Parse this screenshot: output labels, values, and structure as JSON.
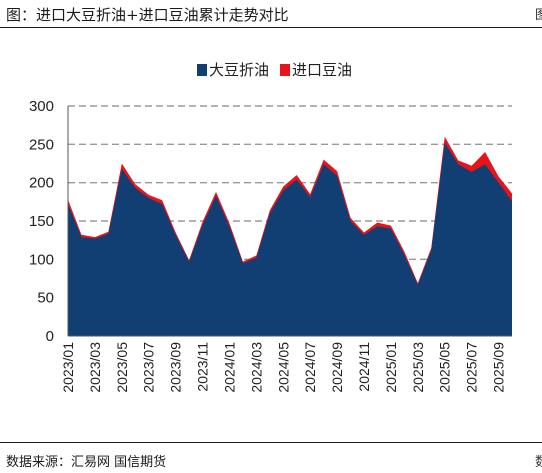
{
  "header": {
    "title": "图：进口大豆折油+进口豆油累计走势对比",
    "edge_char_top": "图",
    "edge_char_bottom": "数"
  },
  "footer": {
    "source": "数据来源：汇易网  国信期货"
  },
  "colors": {
    "soy_oil_from_beans": "#123f73",
    "imported_soy_oil": "#e8141c",
    "grid": "#9a9a9a"
  },
  "chart_data": {
    "type": "area",
    "x": [
      "2023/01",
      "2023/02",
      "2023/03",
      "2023/04",
      "2023/05",
      "2023/06",
      "2023/07",
      "2023/08",
      "2023/09",
      "2023/10",
      "2023/11",
      "2023/12",
      "2024/01",
      "2024/02",
      "2024/03",
      "2024/04",
      "2024/05",
      "2024/06",
      "2024/07",
      "2024/08",
      "2024/09",
      "2024/10",
      "2024/11",
      "2024/12",
      "2025/01",
      "2025/02",
      "2025/03",
      "2025/04",
      "2025/05",
      "2025/06",
      "2025/07",
      "2025/08",
      "2025/09",
      "2025/10"
    ],
    "x_tick_labels": [
      "2023/01",
      "2023/03",
      "2023/05",
      "2023/07",
      "2023/09",
      "2023/11",
      "2024/01",
      "2024/03",
      "2024/05",
      "2024/07",
      "2024/09",
      "2024/11",
      "2025/01",
      "2025/03",
      "2025/05",
      "2025/07",
      "2025/09"
    ],
    "series": [
      {
        "name": "大豆折油",
        "color_key": "soy_oil_from_beans",
        "values": [
          172,
          129,
          127,
          133,
          218,
          193,
          180,
          172,
          132,
          97,
          145,
          183,
          143,
          95,
          102,
          160,
          190,
          204,
          181,
          224,
          209,
          150,
          132,
          143,
          140,
          106,
          67,
          112,
          252,
          224,
          214,
          224,
          200,
          176
        ]
      },
      {
        "name": "进口豆油",
        "color_key": "imported_soy_oil",
        "values": [
          6,
          3,
          2,
          3,
          7,
          5,
          4,
          5,
          3,
          2,
          4,
          5,
          4,
          2,
          3,
          4,
          5,
          6,
          4,
          6,
          6,
          4,
          3,
          5,
          4,
          4,
          2,
          3,
          8,
          5,
          8,
          16,
          8,
          10
        ]
      }
    ],
    "ylim": [
      0,
      300
    ],
    "yticks": [
      0,
      50,
      100,
      150,
      200,
      250,
      300
    ],
    "grid": "horizontal-dashed",
    "legend_position": "top-center"
  }
}
